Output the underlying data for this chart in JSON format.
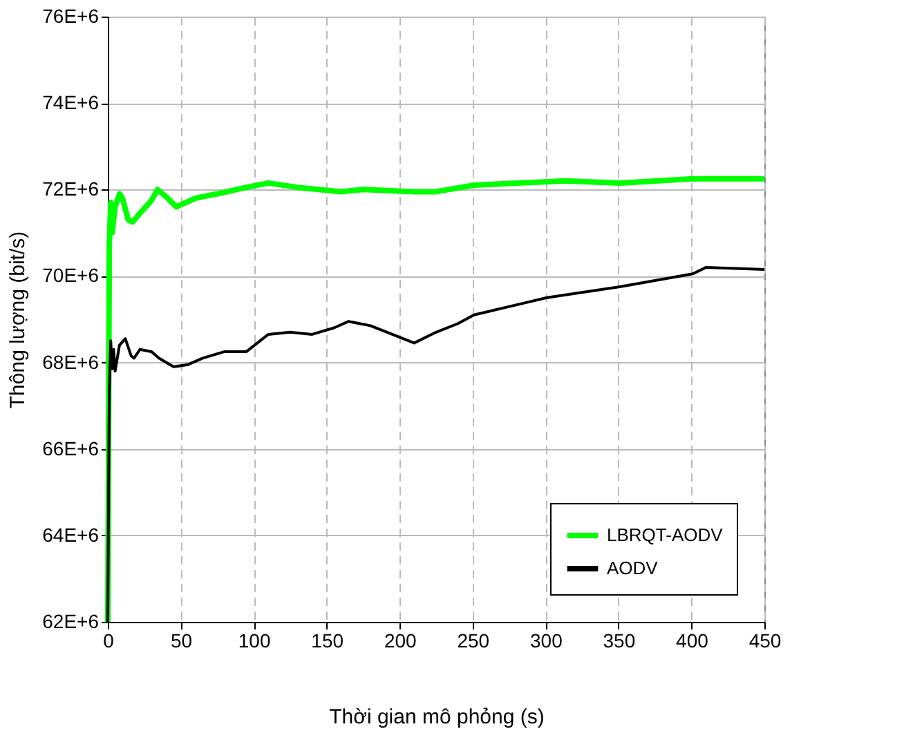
{
  "chart_data": {
    "type": "line",
    "xlabel": "Thời gian mô phỏng (s)",
    "ylabel": "Thông lượng (bit/s)",
    "xlim": [
      0,
      450
    ],
    "xticks": [
      0,
      50,
      100,
      150,
      200,
      250,
      300,
      350,
      400,
      450
    ],
    "ylim": [
      62000000,
      76000000
    ],
    "yticks": [
      {
        "value": 62000000,
        "label": "62E+6"
      },
      {
        "value": 64000000,
        "label": "64E+6"
      },
      {
        "value": 66000000,
        "label": "66E+6"
      },
      {
        "value": 68000000,
        "label": "68E+6"
      },
      {
        "value": 70000000,
        "label": "70E+6"
      },
      {
        "value": 72000000,
        "label": "72E+6"
      },
      {
        "value": 74000000,
        "label": "74E+6"
      },
      {
        "value": 76000000,
        "label": "76E+6"
      }
    ],
    "grid": true,
    "legend": "bottom right",
    "line_style": "solid",
    "marker": "none",
    "series": [
      {
        "name": "LBRQT-AODV",
        "color": "#00ff00",
        "x": [
          0,
          0.5,
          1,
          2,
          3,
          5,
          8,
          10,
          14,
          17,
          22,
          30,
          34,
          41,
          47,
          60,
          75,
          95,
          110,
          130,
          160,
          175,
          210,
          225,
          251,
          313,
          351,
          401,
          450
        ],
        "values": [
          62000000,
          66000000,
          70700000,
          71700000,
          71000000,
          71600000,
          71900000,
          71800000,
          71300000,
          71250000,
          71450000,
          71750000,
          72000000,
          71800000,
          71600000,
          71800000,
          71900000,
          72050000,
          72150000,
          72050000,
          71950000,
          72000000,
          71950000,
          71950000,
          72100000,
          72200000,
          72150000,
          72250000,
          72250000
        ]
      },
      {
        "name": "AODV",
        "color": "#000000",
        "x": [
          0,
          0.5,
          1,
          2,
          3,
          4,
          5,
          8,
          12,
          16,
          18,
          22,
          30,
          35,
          45,
          55,
          65,
          80,
          95,
          110,
          125,
          140,
          155,
          165,
          180,
          210,
          225,
          240,
          251,
          301,
          351,
          401,
          410,
          450
        ],
        "values": [
          62000000,
          65000000,
          67300000,
          68500000,
          67850000,
          68300000,
          67800000,
          68400000,
          68550000,
          68150000,
          68100000,
          68300000,
          68250000,
          68100000,
          67900000,
          67950000,
          68100000,
          68250000,
          68250000,
          68650000,
          68700000,
          68650000,
          68800000,
          68950000,
          68850000,
          68450000,
          68700000,
          68900000,
          69100000,
          69500000,
          69750000,
          70050000,
          70200000,
          70150000
        ]
      }
    ]
  }
}
